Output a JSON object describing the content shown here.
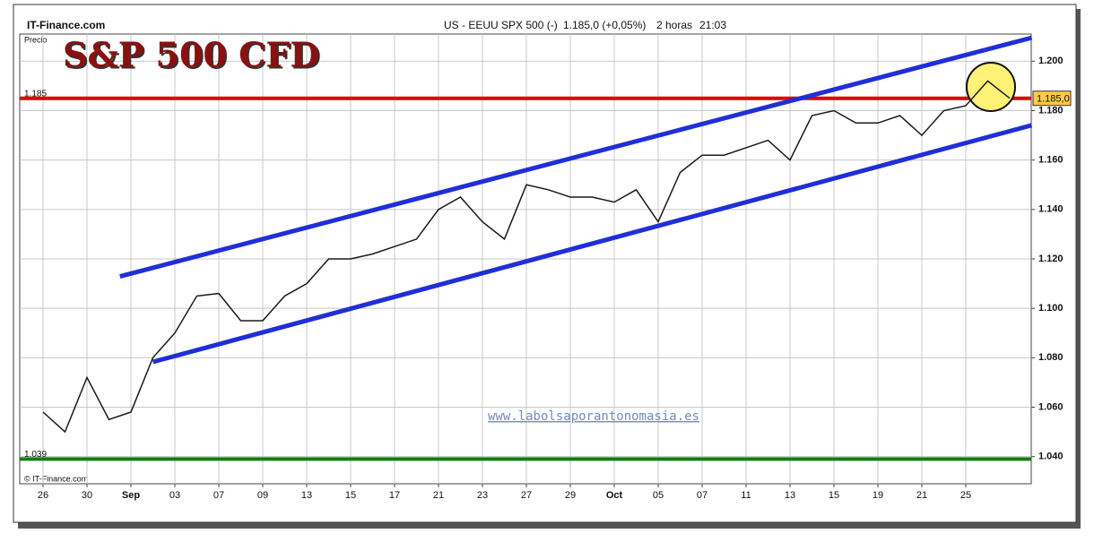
{
  "header": {
    "site": "IT-Finance.com",
    "instrument": "US - EEUU SPX 500 (-)",
    "quote": "1.185,0 (+0,05%)",
    "period": "2 horas",
    "time": "21:03"
  },
  "chart_data": {
    "type": "line",
    "title": "S&P 500 CFD",
    "y_label": "Precio",
    "watermark": "www.labolsaporantonomasia.es",
    "copyright": "© IT-Finance.com",
    "categories": [
      "26",
      null,
      "30",
      null,
      "Sep",
      null,
      "03",
      null,
      "07",
      null,
      "09",
      null,
      "13",
      null,
      "15",
      null,
      "17",
      null,
      "21",
      null,
      "23",
      null,
      "27",
      null,
      "29",
      null,
      "Oct",
      null,
      "05",
      null,
      "07",
      null,
      "11",
      null,
      "13",
      null,
      "15",
      null,
      "19",
      null,
      "21",
      null,
      "25",
      null,
      null
    ],
    "series": [
      {
        "name": "US - EEUU SPX 500",
        "color": "#1a1a1a",
        "values": [
          1.058,
          1.05,
          1.072,
          1.055,
          1.058,
          1.08,
          1.09,
          1.105,
          1.106,
          1.095,
          1.095,
          1.105,
          1.11,
          1.12,
          1.12,
          1.122,
          1.125,
          1.128,
          1.14,
          1.145,
          1.135,
          1.128,
          1.15,
          1.148,
          1.145,
          1.145,
          1.143,
          1.148,
          1.135,
          1.155,
          1.162,
          1.162,
          1.165,
          1.168,
          1.16,
          1.178,
          1.18,
          1.175,
          1.175,
          1.178,
          1.17,
          1.18,
          1.182,
          1.192,
          1.185
        ]
      }
    ],
    "ylim": [
      1.029,
      1.211
    ],
    "yticks": [
      {
        "value": 1.04,
        "label": "1.040"
      },
      {
        "value": 1.06,
        "label": "1.060"
      },
      {
        "value": 1.08,
        "label": "1.080"
      },
      {
        "value": 1.1,
        "label": "1.100"
      },
      {
        "value": 1.12,
        "label": "1.120"
      },
      {
        "value": 1.14,
        "label": "1.140"
      },
      {
        "value": 1.16,
        "label": "1.160"
      },
      {
        "value": 1.18,
        "label": "1.180"
      },
      {
        "value": 1.2,
        "label": "1.200"
      }
    ],
    "hlines": [
      {
        "value": 1.185,
        "label": "1.185",
        "tag": "1.185,0",
        "color": "#e00000"
      },
      {
        "value": 1.039,
        "label": "1.039",
        "color": "#108010"
      }
    ],
    "trendlines": [
      {
        "color": "#1f2fd8",
        "x": [
          3.5,
          45
        ],
        "y": [
          1.1129,
          1.2095
        ]
      },
      {
        "color": "#1f2fd8",
        "x": [
          5,
          45
        ],
        "y": [
          1.0783,
          1.1741
        ]
      }
    ],
    "grid": true
  }
}
